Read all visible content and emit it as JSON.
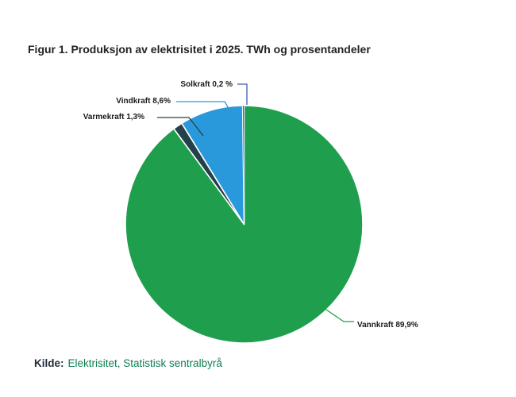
{
  "figure": {
    "title": "Figur 1. Produksjon av elektrisitet i 2025. TWh og prosentandeler",
    "source_label": "Kilde:",
    "source_text": "Elektrisitet, Statistisk sentralbyrå"
  },
  "colors": {
    "title_text": "#232323",
    "label_text": "#1a1a1a",
    "source_label_text": "#1e2b3a",
    "source_link_green": "#0e7e52",
    "background": "#ffffff"
  },
  "chart_data": {
    "type": "pie",
    "title": "Figur 1. Produksjon av elektrisitet i 2025. TWh og prosentandeler",
    "unit": "prosentandeler (%)",
    "categories": [
      "Vannkraft",
      "Varmekraft",
      "Vindkraft",
      "Solkraft"
    ],
    "values": [
      89.9,
      1.3,
      8.6,
      0.2
    ],
    "slice_labels": [
      "Vannkraft 89,9%",
      "Varmekraft 1,3%",
      "Vindkraft 8,6%",
      "Solkraft 0,2 %"
    ],
    "colors": [
      "#1f9e4e",
      "#24414a",
      "#2a99dc",
      "#3f5bbb"
    ],
    "start_angle_deg": 0,
    "direction": "clockwise",
    "legend_position": "none",
    "data_label_style": "outside-with-leader-lines"
  }
}
